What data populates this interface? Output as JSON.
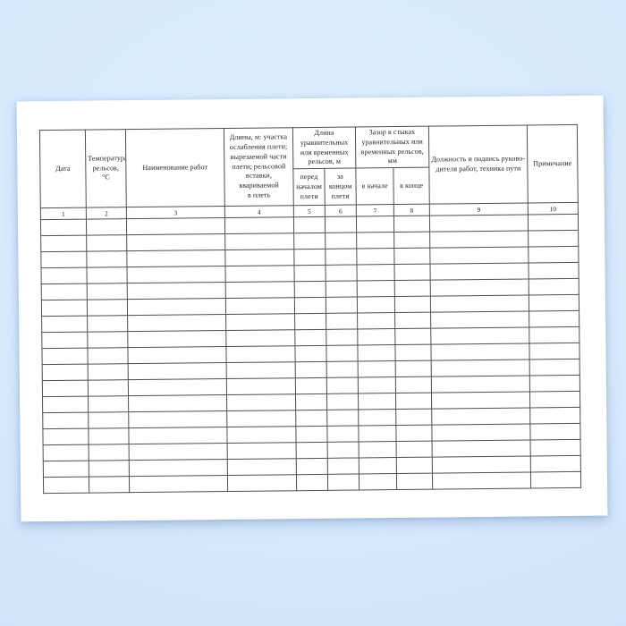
{
  "page": {
    "background_color": "#d6e9fc",
    "paper_color": "#ffffff",
    "border_color": "#4f4f4f"
  },
  "table": {
    "header": {
      "col1": "Дата",
      "col2": "Температура\nрельсов, °С",
      "col3": "Наименование работ",
      "col4": "Длины, м:  участка\nослабления плети;\nвырезаемой части\nплети; рельсовой\nвставки, ввариваемой\nв плеть",
      "group56": "Длина\nуравнительных\nили временных\nрельсов, м",
      "col5": "перед\nначалом\nплети",
      "col6": "за\nконцом\nплети",
      "group78": "Зазор в стыках\nуравнительных или\nвременных рельсов,\nмм",
      "col7": "в начале",
      "col8": "в конце",
      "col9": "Должность и подпись руково-дителя работ, техника пути",
      "col10": "Примечание"
    },
    "column_numbers": [
      "1",
      "2",
      "3",
      "4",
      "5",
      "6",
      "7",
      "8",
      "9",
      "10"
    ],
    "empty_rows": 17
  }
}
